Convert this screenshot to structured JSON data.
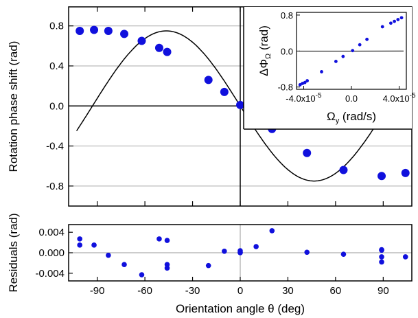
{
  "chart_data": [
    {
      "id": "main",
      "type": "scatter",
      "xlabel": "Orientation angle θ (deg)",
      "ylabel": "Rotation phase shift (rad)",
      "xlim": [
        -108,
        108
      ],
      "ylim": [
        -1.0,
        0.99
      ],
      "xticks": [
        -90,
        -60,
        -30,
        0,
        30,
        60,
        90
      ],
      "yticks": [
        -0.8,
        -0.4,
        0.0,
        0.4,
        0.8
      ],
      "ytick_labels": [
        "-0.8",
        "-0.4",
        "0.0",
        "0.4",
        "0.8"
      ],
      "grid": "horizontal gridlines at y ticks",
      "reference_lines": {
        "y": 0,
        "x": 0
      },
      "marker_color": "#1010dd",
      "curve_color": "#000000",
      "series": [
        {
          "x": [
            -101,
            -92,
            -83,
            -73,
            -62,
            -51,
            -46,
            -20,
            -10,
            0,
            10,
            20,
            42,
            65,
            89,
            104
          ],
          "y": [
            0.75,
            0.76,
            0.75,
            0.72,
            0.65,
            0.58,
            0.54,
            0.26,
            0.14,
            0.01,
            -0.12,
            -0.23,
            -0.47,
            -0.64,
            -0.7,
            -0.67
          ]
        }
      ],
      "fit_curve": {
        "type": "sinusoid",
        "amplitude": 0.75,
        "period_deg": 186,
        "note": "black line through points"
      }
    },
    {
      "id": "inset",
      "type": "scatter",
      "xlabel": "Ωy (rad/s)",
      "ylabel": "ΔΦΩ (rad)",
      "xlabel_parts": {
        "base": "Ω",
        "sub": "y",
        "unit": " (rad/s)"
      },
      "ylabel_parts": {
        "base": "ΔΦ",
        "sub": "Ω",
        "unit": " (rad)"
      },
      "xlim": [
        -4.6e-05,
        4.6e-05
      ],
      "ylim": [
        -0.85,
        0.86
      ],
      "xtick_labels": [
        {
          "value": -4e-05,
          "mantissa": "-4.0x10",
          "exp": "-5"
        },
        {
          "value": 0.0,
          "mantissa": "0.0",
          "exp": ""
        },
        {
          "value": 4e-05,
          "mantissa": "4.0x10",
          "exp": "-5"
        }
      ],
      "yticks": [
        -0.8,
        0.0,
        0.8
      ],
      "ytick_labels": [
        "-0.8",
        "0.0",
        "0.8"
      ],
      "marker_color": "#1010dd",
      "series": [
        {
          "x": [
            -4.3e-05,
            -4.1e-05,
            -3.9e-05,
            -3.7e-05,
            -2.5e-05,
            -1.3e-05,
            -7e-06,
            1e-06,
            7e-06,
            1.3e-05,
            2.6e-05,
            3.3e-05,
            3.6e-05,
            3.9e-05,
            4.2e-05
          ],
          "y": [
            -0.75,
            -0.72,
            -0.7,
            -0.66,
            -0.46,
            -0.23,
            -0.12,
            0.01,
            0.14,
            0.26,
            0.54,
            0.62,
            0.66,
            0.7,
            0.74
          ]
        }
      ],
      "fit_line": {
        "slope": 17.6,
        "intercept": 0.0
      }
    },
    {
      "id": "residuals",
      "type": "scatter",
      "xlabel": "Orientation angle θ (deg)",
      "ylabel": "Residuals (rad)",
      "xlim": [
        -108,
        108
      ],
      "ylim": [
        -0.0055,
        0.0055
      ],
      "xticks": [
        -90,
        -60,
        -30,
        0,
        30,
        60,
        90
      ],
      "xtick_labels": [
        "-90",
        "-60",
        "-30",
        "0",
        "30",
        "60",
        "90"
      ],
      "yticks": [
        -0.004,
        0.0,
        0.004
      ],
      "ytick_labels": [
        "-0.004",
        "0.000",
        "0.004"
      ],
      "reference_lines": {
        "y": 0,
        "x": 0
      },
      "marker_color": "#1010dd",
      "series": [
        {
          "x": [
            -101,
            -101,
            -92,
            -83,
            -73,
            -62,
            -51,
            -46,
            -46,
            -46,
            -20,
            -10,
            0,
            0,
            0,
            10,
            20,
            42,
            65,
            89,
            89,
            89,
            89,
            104
          ],
          "y": [
            0.0027,
            0.0015,
            0.0015,
            -0.0005,
            -0.0023,
            -0.0043,
            0.0027,
            0.0024,
            -0.0023,
            -0.003,
            -0.0025,
            0.0003,
            0.0004,
            0.0001,
            0.0,
            0.0012,
            0.0043,
            0.0001,
            -0.0003,
            0.0005,
            -0.0008,
            -0.0018,
            0.0006,
            -0.0008
          ]
        }
      ]
    }
  ]
}
